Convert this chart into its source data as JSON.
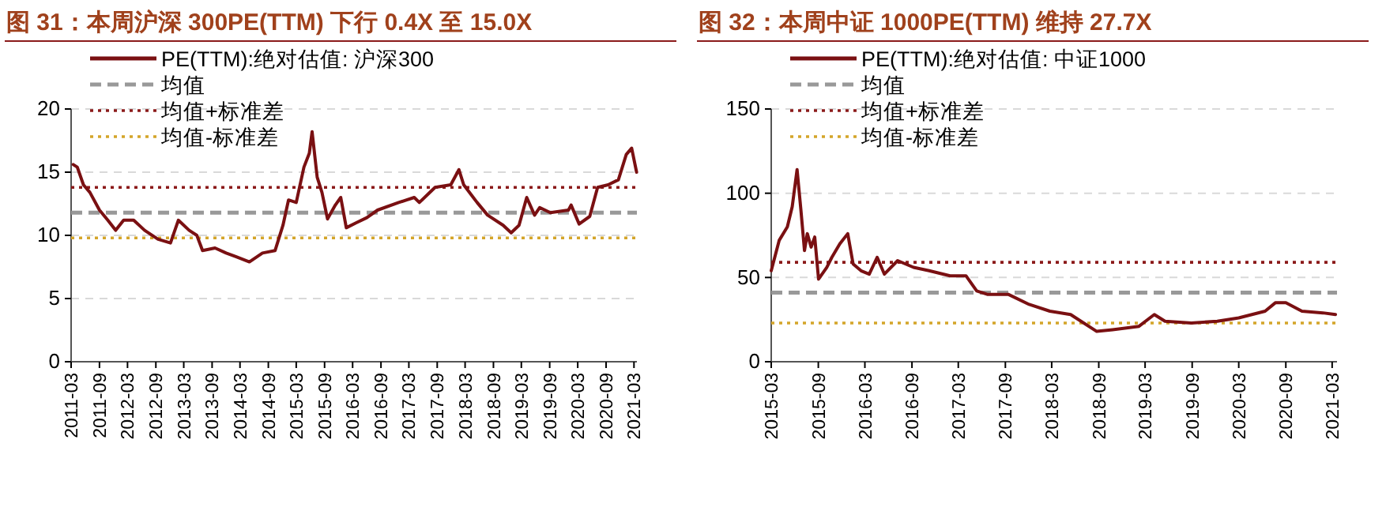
{
  "chart_data": [
    {
      "type": "line",
      "title": "图 31：本周沪深 300PE(TTM) 下行 0.4X 至 15.0X",
      "series": [
        {
          "name": "PE(TTM):绝对估值: 沪深300",
          "color": "#7a1012",
          "x": [
            "2011-03-15",
            "2011-04-10",
            "2011-05-20",
            "2011-07-01",
            "2011-09-01",
            "2011-10-25",
            "2011-12-15",
            "2012-02-05",
            "2012-04-10",
            "2012-06-20",
            "2012-09-15",
            "2012-12-05",
            "2013-01-25",
            "2013-04-05",
            "2013-05-25",
            "2013-07-01",
            "2013-09-20",
            "2013-12-01",
            "2014-02-05",
            "2014-05-01",
            "2014-07-25",
            "2014-10-15",
            "2014-12-05",
            "2015-01-10",
            "2015-03-01",
            "2015-04-20",
            "2015-05-25",
            "2015-06-12",
            "2015-07-15",
            "2015-08-15",
            "2015-09-20",
            "2015-11-10",
            "2015-12-15",
            "2016-01-20",
            "2016-03-25",
            "2016-06-01",
            "2016-08-10",
            "2016-12-25",
            "2017-04-05",
            "2017-05-08",
            "2017-08-18",
            "2017-11-28",
            "2018-01-20",
            "2018-02-20",
            "2018-05-18",
            "2018-07-25",
            "2018-11-03",
            "2018-12-25",
            "2019-02-14",
            "2019-04-05",
            "2019-05-26",
            "2019-06-28",
            "2019-09-05",
            "2020-01-01",
            "2020-01-18",
            "2020-03-10",
            "2020-05-18",
            "2020-07-08",
            "2020-09-14",
            "2020-11-20",
            "2021-01-10",
            "2021-02-14",
            "2021-03-18"
          ],
          "values": [
            15.6,
            15.4,
            14.0,
            13.4,
            12.0,
            11.2,
            10.4,
            11.2,
            11.2,
            10.4,
            9.7,
            9.4,
            11.2,
            10.4,
            10.0,
            8.8,
            9.0,
            8.6,
            8.3,
            7.9,
            8.6,
            8.8,
            10.8,
            12.8,
            12.6,
            15.4,
            16.5,
            18.2,
            14.6,
            13.4,
            11.3,
            12.4,
            13.0,
            10.6,
            11.0,
            11.4,
            12.0,
            12.6,
            13.0,
            12.6,
            13.8,
            14.0,
            15.2,
            14.0,
            12.6,
            11.6,
            10.8,
            10.2,
            10.8,
            13.0,
            11.6,
            12.2,
            11.8,
            12.0,
            12.4,
            10.9,
            11.5,
            13.8,
            14.0,
            14.4,
            16.4,
            16.9,
            15.0
          ]
        }
      ],
      "xlim": [
        "2011-03-01",
        "2021-03-20"
      ],
      "xticks": [
        "2011-03",
        "2011-09",
        "2012-03",
        "2012-09",
        "2013-03",
        "2013-09",
        "2014-03",
        "2014-09",
        "2015-03",
        "2015-09",
        "2016-03",
        "2016-09",
        "2017-03",
        "2017-09",
        "2018-03",
        "2018-09",
        "2019-03",
        "2019-09",
        "2020-03",
        "2020-09",
        "2021-03"
      ],
      "ylim": [
        0,
        20
      ],
      "yticks": [
        0,
        5,
        10,
        15,
        20
      ],
      "grid": "y",
      "legend": "top",
      "ref_lines": [
        {
          "axis": "y",
          "value": 11.8,
          "label": "均值",
          "color": "#999999",
          "line_style": "dashed"
        },
        {
          "axis": "y",
          "value": 13.8,
          "label": "均值+标准差",
          "color": "#8b1a1a",
          "line_style": "dotted"
        },
        {
          "axis": "y",
          "value": 9.8,
          "label": "均值-标准差",
          "color": "#d4a52a",
          "line_style": "dotted"
        }
      ]
    },
    {
      "type": "line",
      "title": "图 32：本周中证 1000PE(TTM) 维持 27.7X",
      "series": [
        {
          "name": "PE(TTM):绝对估值: 中证1000",
          "color": "#7a1012",
          "x": [
            "2015-03-01",
            "2015-04-01",
            "2015-05-03",
            "2015-05-22",
            "2015-06-10",
            "2015-06-25",
            "2015-07-09",
            "2015-07-20",
            "2015-08-04",
            "2015-08-18",
            "2015-09-02",
            "2015-10-04",
            "2015-10-24",
            "2015-11-24",
            "2015-12-25",
            "2016-01-15",
            "2016-02-15",
            "2016-03-18",
            "2016-04-18",
            "2016-05-16",
            "2016-07-07",
            "2016-09-07",
            "2016-11-07",
            "2017-01-28",
            "2017-03-31",
            "2017-05-12",
            "2017-06-22",
            "2017-09-12",
            "2017-12-03",
            "2018-02-22",
            "2018-05-14",
            "2018-08-24",
            "2018-10-25",
            "2019-02-05",
            "2019-04-06",
            "2019-05-18",
            "2019-08-29",
            "2019-12-08",
            "2020-03-01",
            "2020-06-12",
            "2020-07-22",
            "2020-09-01",
            "2020-11-03",
            "2021-01-24",
            "2021-03-14"
          ],
          "values": [
            54,
            72,
            80,
            92,
            114,
            90,
            66,
            76,
            68,
            74,
            49,
            56,
            62,
            70,
            76,
            58,
            54,
            52,
            62,
            52,
            60,
            56,
            54,
            51,
            51,
            42,
            40,
            40,
            34,
            30,
            28,
            18,
            19,
            21,
            28,
            24,
            23,
            24,
            26,
            30,
            35,
            35,
            30,
            29,
            28
          ]
        }
      ],
      "xlim": [
        "2015-03-01",
        "2021-03-20"
      ],
      "xticks": [
        "2015-03",
        "2015-09",
        "2016-03",
        "2016-09",
        "2017-03",
        "2017-09",
        "2018-03",
        "2018-09",
        "2019-03",
        "2019-09",
        "2020-03",
        "2020-09",
        "2021-03"
      ],
      "ylim": [
        0,
        150
      ],
      "yticks": [
        0,
        50,
        100,
        150
      ],
      "grid": "y",
      "legend": "top",
      "ref_lines": [
        {
          "axis": "y",
          "value": 41,
          "label": "均值",
          "color": "#999999",
          "line_style": "dashed"
        },
        {
          "axis": "y",
          "value": 59,
          "label": "均值+标准差",
          "color": "#8b1a1a",
          "line_style": "dotted"
        },
        {
          "axis": "y",
          "value": 23,
          "label": "均值-标准差",
          "color": "#d4a52a",
          "line_style": "dotted"
        }
      ]
    }
  ]
}
